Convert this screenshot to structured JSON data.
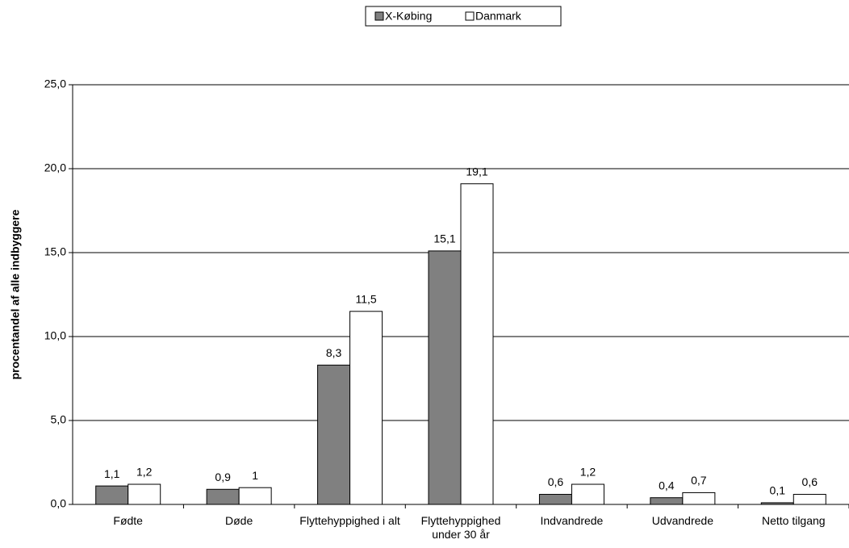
{
  "chart_data": {
    "type": "bar",
    "y_axis_label": "procentandel af alle indbyggere",
    "categories": [
      "Fødte",
      "Døde",
      "Flyttehyppighed i alt",
      "Flyttehyppighed under 30 år",
      "Indvandrede",
      "Udvandrede",
      "Netto tilgang"
    ],
    "series": [
      {
        "name": "X-Købing",
        "color": "#808080",
        "values": [
          1.1,
          0.9,
          8.3,
          15.1,
          0.6,
          0.4,
          0.1
        ],
        "value_labels": [
          "1,1",
          "0,9",
          "8,3",
          "15,1",
          "0,6",
          "0,4",
          "0,1"
        ]
      },
      {
        "name": "Danmark",
        "color": "#ffffff",
        "values": [
          1.2,
          1,
          11.5,
          19.1,
          1.2,
          0.7,
          0.6
        ],
        "value_labels": [
          "1,2",
          "1",
          "11,5",
          "19,1",
          "1,2",
          "0,7",
          "0,6"
        ]
      }
    ],
    "ylim": [
      0,
      25
    ],
    "yticks": [
      {
        "value": 0,
        "label": "0,0"
      },
      {
        "value": 5,
        "label": "5,0"
      },
      {
        "value": 10,
        "label": "10,0"
      },
      {
        "value": 15,
        "label": "15,0"
      },
      {
        "value": 20,
        "label": "20,0"
      },
      {
        "value": 25,
        "label": "25,0"
      }
    ],
    "grid": true,
    "legend": "top"
  }
}
